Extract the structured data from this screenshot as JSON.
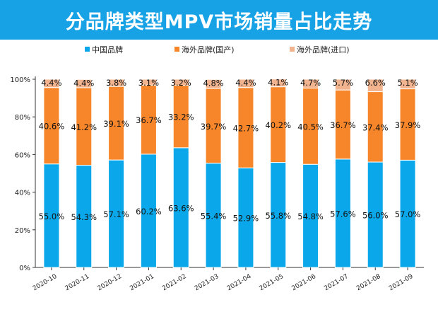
{
  "chart_data": {
    "type": "bar",
    "stacked": true,
    "title": "分品牌类型MPV市场销量占比走势",
    "categories": [
      "2020-10",
      "2020-11",
      "2020-12",
      "2021-01",
      "2021-02",
      "2021-03",
      "2021-04",
      "2021-05",
      "2021-06",
      "2021-07",
      "2021-08",
      "2021-09"
    ],
    "series": [
      {
        "name": "中国品牌",
        "color": "#0aa8ea",
        "values": [
          55.0,
          54.3,
          57.1,
          60.2,
          63.6,
          55.4,
          52.9,
          55.8,
          54.8,
          57.6,
          56.0,
          57.0
        ]
      },
      {
        "name": "海外品牌(国产)",
        "color": "#f7862a",
        "values": [
          40.6,
          41.2,
          39.1,
          36.7,
          33.2,
          39.7,
          42.7,
          40.2,
          40.5,
          36.7,
          37.4,
          37.9
        ]
      },
      {
        "name": "海外品牌(进口)",
        "color": "#f2b48f",
        "values": [
          4.4,
          4.4,
          3.8,
          3.1,
          3.2,
          4.8,
          4.4,
          4.1,
          4.7,
          5.7,
          6.6,
          5.1
        ]
      }
    ],
    "ylim": [
      0,
      100
    ],
    "yticks": [
      "0%",
      "20%",
      "40%",
      "60%",
      "80%",
      "100%"
    ],
    "legend": "top",
    "grid": false
  }
}
